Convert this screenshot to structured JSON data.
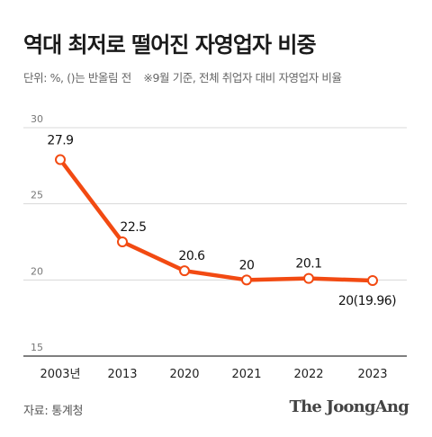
{
  "title": "역대 최저로 떨어진 자영업자 비중",
  "unit_note": "단위: %, ()는 반올림 전",
  "footnote": "※9월 기준, 전체 취업자 대비 자영업자 비율",
  "source": "자료: 통계청",
  "brand": "The JoongAng",
  "colors": {
    "line": "#f24a12",
    "grid": "#d8d8d8",
    "axis": "#333333"
  },
  "chart_data": {
    "type": "line",
    "title": "역대 최저로 떨어진 자영업자 비중",
    "categories": [
      "2003년",
      "2013",
      "2020",
      "2021",
      "2022",
      "2023"
    ],
    "series": [
      {
        "values": [
          27.9,
          22.5,
          20.6,
          20,
          20.1,
          19.96
        ],
        "labels": [
          "27.9",
          "22.5",
          "20.6",
          "20",
          "20.1",
          "20(19.96)"
        ]
      }
    ],
    "ylim": [
      15,
      30
    ],
    "yticks": [
      15,
      20,
      25,
      30
    ],
    "grid": true,
    "xlabel": "",
    "ylabel": ""
  }
}
